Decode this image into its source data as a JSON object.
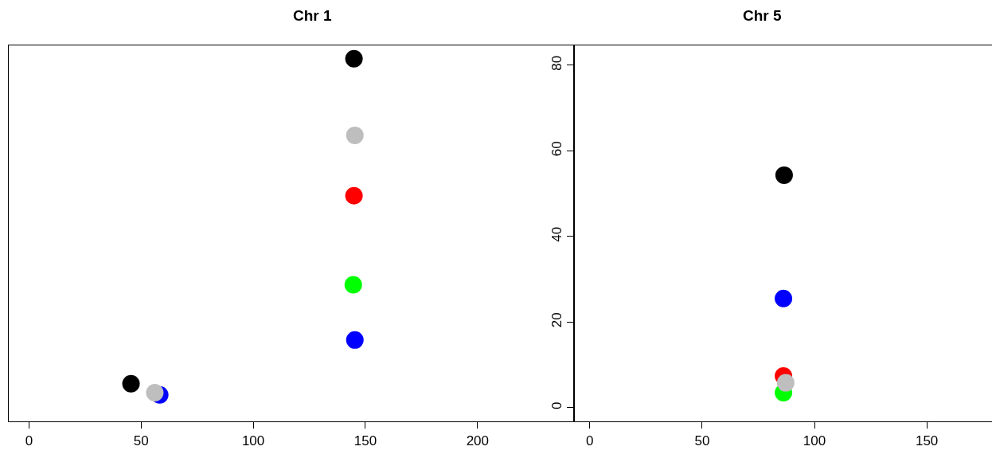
{
  "chart_data": [
    {
      "type": "scatter",
      "title": "Chr 1",
      "xlim": [
        -9,
        243
      ],
      "xticks": [
        0,
        50,
        100,
        150,
        200
      ],
      "ylim": [
        -3.2,
        84.6
      ],
      "yticks": [
        0,
        20,
        40,
        60,
        80
      ],
      "tick_labels": "x",
      "marker": "circle",
      "series": [
        {
          "color": "#000000",
          "x": [
            45.5,
            144.9
          ],
          "values": [
            5.6,
            81.5
          ]
        },
        {
          "color": "#ff0000",
          "x": [
            144.9
          ],
          "values": [
            49.5
          ]
        },
        {
          "color": "#00ff00",
          "x": [
            144.6
          ],
          "values": [
            28.7
          ]
        },
        {
          "color": "#0000ff",
          "x": [
            58.3,
            145.3
          ],
          "values": [
            3.0,
            15.8
          ]
        },
        {
          "color": "#bebebe",
          "x": [
            56.1,
            145.3
          ],
          "values": [
            3.5,
            63.6
          ]
        }
      ]
    },
    {
      "type": "scatter",
      "title": "Chr 5",
      "xlim": [
        -7,
        179
      ],
      "xticks": [
        0,
        50,
        100,
        150
      ],
      "ylim": [
        -3.2,
        84.6
      ],
      "yticks": [
        0,
        20,
        40,
        60,
        80
      ],
      "marker": "circle",
      "series": [
        {
          "color": "#000000",
          "x": [
            86.5
          ],
          "values": [
            54.3
          ]
        },
        {
          "color": "#ff0000",
          "x": [
            86.2
          ],
          "values": [
            7.4
          ]
        },
        {
          "color": "#00ff00",
          "x": [
            86.2
          ],
          "values": [
            3.5
          ]
        },
        {
          "color": "#0000ff",
          "x": [
            86.2
          ],
          "values": [
            25.5
          ]
        },
        {
          "color": "#bebebe",
          "x": [
            87.2
          ],
          "values": [
            5.8
          ]
        }
      ]
    }
  ]
}
